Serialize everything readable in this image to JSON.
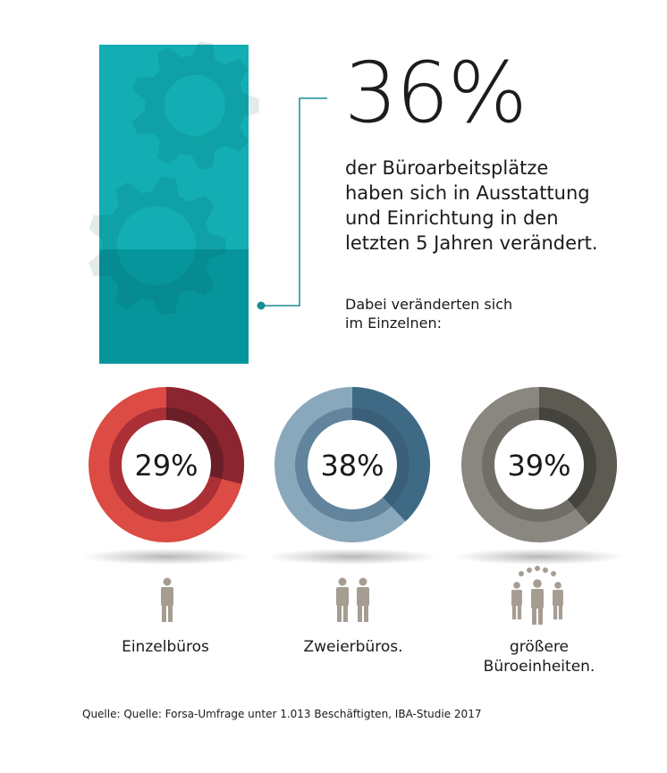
{
  "headline": {
    "percent": "36%",
    "lead_lines": [
      "der Büroarbeitsplätze",
      "haben sich in Ausstattung",
      "und Einrichtung in den",
      "letzten 5 Jahren verändert."
    ],
    "sub_lines": [
      "Dabei veränderten sich",
      "im Einzelnen:"
    ]
  },
  "chart_data": {
    "type": "pie",
    "items": [
      {
        "category": "Einzelbüros",
        "value": 29,
        "label": "29%",
        "colors": {
          "main": "#dc4b44",
          "dark": "#8b2530",
          "ring": "#a42d35",
          "hole_ring": "#6a1e27"
        }
      },
      {
        "category": "Zweierbüros.",
        "value": 38,
        "label": "38%",
        "colors": {
          "main": "#8aa8bc",
          "dark": "#3f6a85",
          "ring": "#5d8098",
          "hole_ring": "#3a5f78"
        }
      },
      {
        "category": "größere Büroeinheiten.",
        "value": 39,
        "label": "39%",
        "colors": {
          "main": "#8a8780",
          "dark": "#5d5a52",
          "ring": "#6e6b64",
          "hole_ring": "#45433d"
        }
      }
    ],
    "labels": [
      [
        "Einzelbüros"
      ],
      [
        "Zweierbüros."
      ],
      [
        "größere",
        "Büroeinheiten."
      ]
    ]
  },
  "bar_fill": {
    "value": 36,
    "colors": {
      "light": "#12aeb3",
      "dark": "#07959c",
      "connector": "#1a8c93"
    }
  },
  "icons": [
    "person-icon",
    "two-persons-icon",
    "group-icon"
  ],
  "source": "Quelle: Quelle: Forsa-Umfrage unter 1.013 Beschäftigten, IBA-Studie 2017"
}
